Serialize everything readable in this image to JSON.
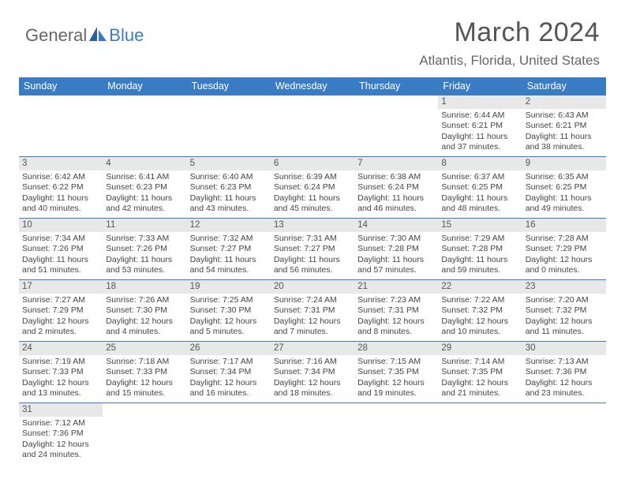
{
  "brand": {
    "general": "General",
    "blue": "Blue"
  },
  "title": {
    "month": "March 2024",
    "location": "Atlantis, Florida, United States"
  },
  "colors": {
    "accent": "#3a7cc4",
    "header_text": "#ffffff",
    "daynum_bg": "#e8e8e8",
    "body_text": "#444444"
  },
  "weekdays": [
    "Sunday",
    "Monday",
    "Tuesday",
    "Wednesday",
    "Thursday",
    "Friday",
    "Saturday"
  ],
  "calendar": {
    "type": "table",
    "rows": [
      [
        {
          "n": "",
          "sr": "",
          "ss": "",
          "dl": ""
        },
        {
          "n": "",
          "sr": "",
          "ss": "",
          "dl": ""
        },
        {
          "n": "",
          "sr": "",
          "ss": "",
          "dl": ""
        },
        {
          "n": "",
          "sr": "",
          "ss": "",
          "dl": ""
        },
        {
          "n": "",
          "sr": "",
          "ss": "",
          "dl": ""
        },
        {
          "n": "1",
          "sr": "Sunrise: 6:44 AM",
          "ss": "Sunset: 6:21 PM",
          "dl": "Daylight: 11 hours and 37 minutes."
        },
        {
          "n": "2",
          "sr": "Sunrise: 6:43 AM",
          "ss": "Sunset: 6:21 PM",
          "dl": "Daylight: 11 hours and 38 minutes."
        }
      ],
      [
        {
          "n": "3",
          "sr": "Sunrise: 6:42 AM",
          "ss": "Sunset: 6:22 PM",
          "dl": "Daylight: 11 hours and 40 minutes."
        },
        {
          "n": "4",
          "sr": "Sunrise: 6:41 AM",
          "ss": "Sunset: 6:23 PM",
          "dl": "Daylight: 11 hours and 42 minutes."
        },
        {
          "n": "5",
          "sr": "Sunrise: 6:40 AM",
          "ss": "Sunset: 6:23 PM",
          "dl": "Daylight: 11 hours and 43 minutes."
        },
        {
          "n": "6",
          "sr": "Sunrise: 6:39 AM",
          "ss": "Sunset: 6:24 PM",
          "dl": "Daylight: 11 hours and 45 minutes."
        },
        {
          "n": "7",
          "sr": "Sunrise: 6:38 AM",
          "ss": "Sunset: 6:24 PM",
          "dl": "Daylight: 11 hours and 46 minutes."
        },
        {
          "n": "8",
          "sr": "Sunrise: 6:37 AM",
          "ss": "Sunset: 6:25 PM",
          "dl": "Daylight: 11 hours and 48 minutes."
        },
        {
          "n": "9",
          "sr": "Sunrise: 6:35 AM",
          "ss": "Sunset: 6:25 PM",
          "dl": "Daylight: 11 hours and 49 minutes."
        }
      ],
      [
        {
          "n": "10",
          "sr": "Sunrise: 7:34 AM",
          "ss": "Sunset: 7:26 PM",
          "dl": "Daylight: 11 hours and 51 minutes."
        },
        {
          "n": "11",
          "sr": "Sunrise: 7:33 AM",
          "ss": "Sunset: 7:26 PM",
          "dl": "Daylight: 11 hours and 53 minutes."
        },
        {
          "n": "12",
          "sr": "Sunrise: 7:32 AM",
          "ss": "Sunset: 7:27 PM",
          "dl": "Daylight: 11 hours and 54 minutes."
        },
        {
          "n": "13",
          "sr": "Sunrise: 7:31 AM",
          "ss": "Sunset: 7:27 PM",
          "dl": "Daylight: 11 hours and 56 minutes."
        },
        {
          "n": "14",
          "sr": "Sunrise: 7:30 AM",
          "ss": "Sunset: 7:28 PM",
          "dl": "Daylight: 11 hours and 57 minutes."
        },
        {
          "n": "15",
          "sr": "Sunrise: 7:29 AM",
          "ss": "Sunset: 7:28 PM",
          "dl": "Daylight: 11 hours and 59 minutes."
        },
        {
          "n": "16",
          "sr": "Sunrise: 7:28 AM",
          "ss": "Sunset: 7:29 PM",
          "dl": "Daylight: 12 hours and 0 minutes."
        }
      ],
      [
        {
          "n": "17",
          "sr": "Sunrise: 7:27 AM",
          "ss": "Sunset: 7:29 PM",
          "dl": "Daylight: 12 hours and 2 minutes."
        },
        {
          "n": "18",
          "sr": "Sunrise: 7:26 AM",
          "ss": "Sunset: 7:30 PM",
          "dl": "Daylight: 12 hours and 4 minutes."
        },
        {
          "n": "19",
          "sr": "Sunrise: 7:25 AM",
          "ss": "Sunset: 7:30 PM",
          "dl": "Daylight: 12 hours and 5 minutes."
        },
        {
          "n": "20",
          "sr": "Sunrise: 7:24 AM",
          "ss": "Sunset: 7:31 PM",
          "dl": "Daylight: 12 hours and 7 minutes."
        },
        {
          "n": "21",
          "sr": "Sunrise: 7:23 AM",
          "ss": "Sunset: 7:31 PM",
          "dl": "Daylight: 12 hours and 8 minutes."
        },
        {
          "n": "22",
          "sr": "Sunrise: 7:22 AM",
          "ss": "Sunset: 7:32 PM",
          "dl": "Daylight: 12 hours and 10 minutes."
        },
        {
          "n": "23",
          "sr": "Sunrise: 7:20 AM",
          "ss": "Sunset: 7:32 PM",
          "dl": "Daylight: 12 hours and 11 minutes."
        }
      ],
      [
        {
          "n": "24",
          "sr": "Sunrise: 7:19 AM",
          "ss": "Sunset: 7:33 PM",
          "dl": "Daylight: 12 hours and 13 minutes."
        },
        {
          "n": "25",
          "sr": "Sunrise: 7:18 AM",
          "ss": "Sunset: 7:33 PM",
          "dl": "Daylight: 12 hours and 15 minutes."
        },
        {
          "n": "26",
          "sr": "Sunrise: 7:17 AM",
          "ss": "Sunset: 7:34 PM",
          "dl": "Daylight: 12 hours and 16 minutes."
        },
        {
          "n": "27",
          "sr": "Sunrise: 7:16 AM",
          "ss": "Sunset: 7:34 PM",
          "dl": "Daylight: 12 hours and 18 minutes."
        },
        {
          "n": "28",
          "sr": "Sunrise: 7:15 AM",
          "ss": "Sunset: 7:35 PM",
          "dl": "Daylight: 12 hours and 19 minutes."
        },
        {
          "n": "29",
          "sr": "Sunrise: 7:14 AM",
          "ss": "Sunset: 7:35 PM",
          "dl": "Daylight: 12 hours and 21 minutes."
        },
        {
          "n": "30",
          "sr": "Sunrise: 7:13 AM",
          "ss": "Sunset: 7:36 PM",
          "dl": "Daylight: 12 hours and 23 minutes."
        }
      ],
      [
        {
          "n": "31",
          "sr": "Sunrise: 7:12 AM",
          "ss": "Sunset: 7:36 PM",
          "dl": "Daylight: 12 hours and 24 minutes."
        },
        {
          "n": "",
          "sr": "",
          "ss": "",
          "dl": ""
        },
        {
          "n": "",
          "sr": "",
          "ss": "",
          "dl": ""
        },
        {
          "n": "",
          "sr": "",
          "ss": "",
          "dl": ""
        },
        {
          "n": "",
          "sr": "",
          "ss": "",
          "dl": ""
        },
        {
          "n": "",
          "sr": "",
          "ss": "",
          "dl": ""
        },
        {
          "n": "",
          "sr": "",
          "ss": "",
          "dl": ""
        }
      ]
    ]
  }
}
